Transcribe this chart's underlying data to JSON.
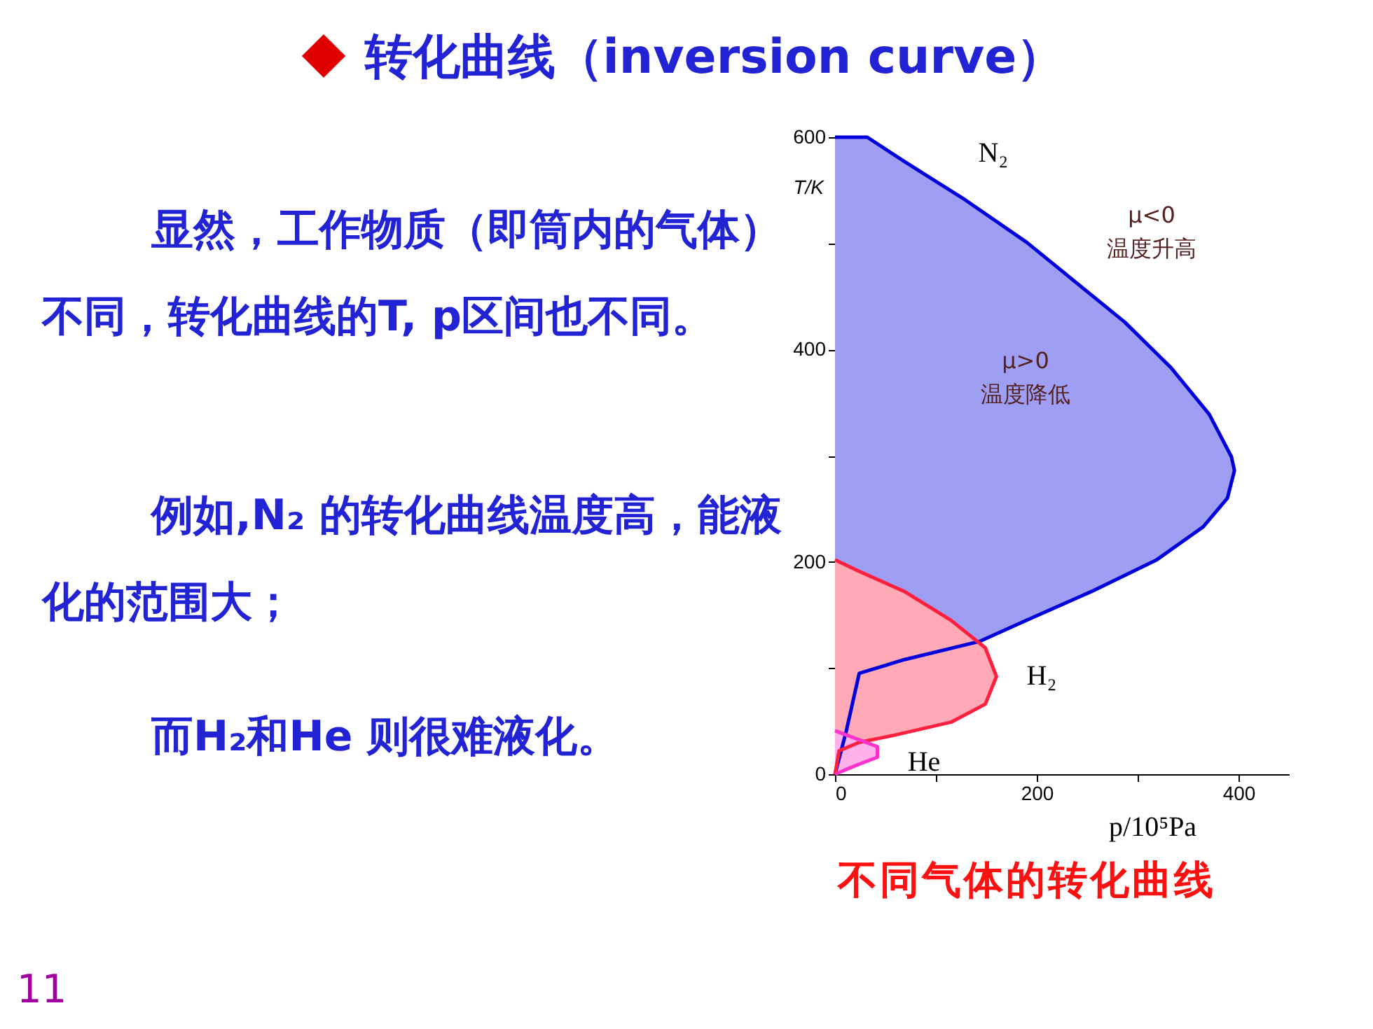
{
  "chart_data": {
    "type": "line",
    "title": "转化曲线（inversion curve）",
    "xlabel": "p/10⁵Pa",
    "ylabel": "T/K",
    "xlim": [
      0,
      450
    ],
    "ylim": [
      0,
      600
    ],
    "xticks": [
      0,
      {
        "value": 100,
        "label": null
      },
      200,
      {
        "value": 300,
        "label": null
      },
      400
    ],
    "yticks": [
      0,
      {
        "value": 100,
        "label": null
      },
      200,
      {
        "value": 300,
        "label": null
      },
      400,
      {
        "value": 500,
        "label": null
      },
      600
    ],
    "grid": false,
    "series": [
      {
        "name": "N₂",
        "color": "#0000dd",
        "x": [
          0,
          11,
          24,
          69,
          143,
          190,
          254,
          319,
          365,
          389,
          396,
          393,
          371,
          333,
          287,
          190,
          129,
          69,
          32,
          0
        ],
        "values": [
          0,
          40,
          95,
          108,
          125,
          145,
          172,
          202,
          233,
          260,
          286,
          299,
          339,
          383,
          426,
          501,
          541,
          577,
          600,
          600
        ]
      },
      {
        "name": "H₂",
        "color": "#ff2040",
        "x": [
          0,
          4,
          24,
          60,
          115,
          149,
          160,
          149,
          115,
          69,
          24,
          0
        ],
        "values": [
          0,
          22,
          30,
          37,
          49,
          66,
          92,
          119,
          145,
          172,
          191,
          202
        ]
      },
      {
        "name": "He",
        "color": "#ff33cc",
        "x": [
          0,
          20,
          42,
          42,
          0
        ],
        "values": [
          0,
          8,
          16,
          26,
          41
        ]
      }
    ],
    "annotations": [
      "显然，工作物质（即筒内的气体）不同，转化曲线的T, p区间也不同。",
      "例如,N₂ 的转化曲线温度高，能液化的范围大；",
      "而H₂和He 则很难液化。",
      "不同气体的转化曲线",
      "11",
      "μ<0\n温度升高",
      "μ>0\n温度降低"
    ]
  }
}
